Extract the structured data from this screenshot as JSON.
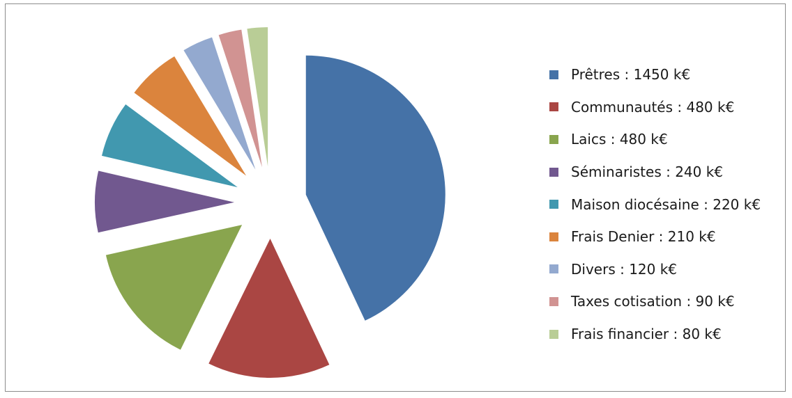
{
  "chart_data": {
    "type": "pie",
    "exploded": true,
    "legend_position": "right",
    "slices": [
      {
        "name": "Prêtres",
        "value": 1450,
        "unit": "k€",
        "label": "Prêtres : 1450 k€",
        "color": "#4572A7"
      },
      {
        "name": "Communautés",
        "value": 480,
        "unit": "k€",
        "label": "Communautés : 480 k€",
        "color": "#AA4643"
      },
      {
        "name": "Laics",
        "value": 480,
        "unit": "k€",
        "label": "Laics : 480 k€",
        "color": "#89A54E"
      },
      {
        "name": "Séminaristes",
        "value": 240,
        "unit": "k€",
        "label": "Séminaristes : 240 k€",
        "color": "#71588F"
      },
      {
        "name": "Maison diocésaine",
        "value": 220,
        "unit": "k€",
        "label": "Maison diocésaine : 220 k€",
        "color": "#4198AF"
      },
      {
        "name": "Frais Denier",
        "value": 210,
        "unit": "k€",
        "label": "Frais Denier : 210 k€",
        "color": "#DB843D"
      },
      {
        "name": "Divers",
        "value": 120,
        "unit": "k€",
        "label": "Divers : 120 k€",
        "color": "#93A9CF"
      },
      {
        "name": "Taxes cotisation",
        "value": 90,
        "unit": "k€",
        "label": "Taxes cotisation : 90 k€",
        "color": "#D19392"
      },
      {
        "name": "Frais financier",
        "value": 80,
        "unit": "k€",
        "label": "Frais financier : 80 k€",
        "color": "#B9CD96"
      }
    ]
  }
}
